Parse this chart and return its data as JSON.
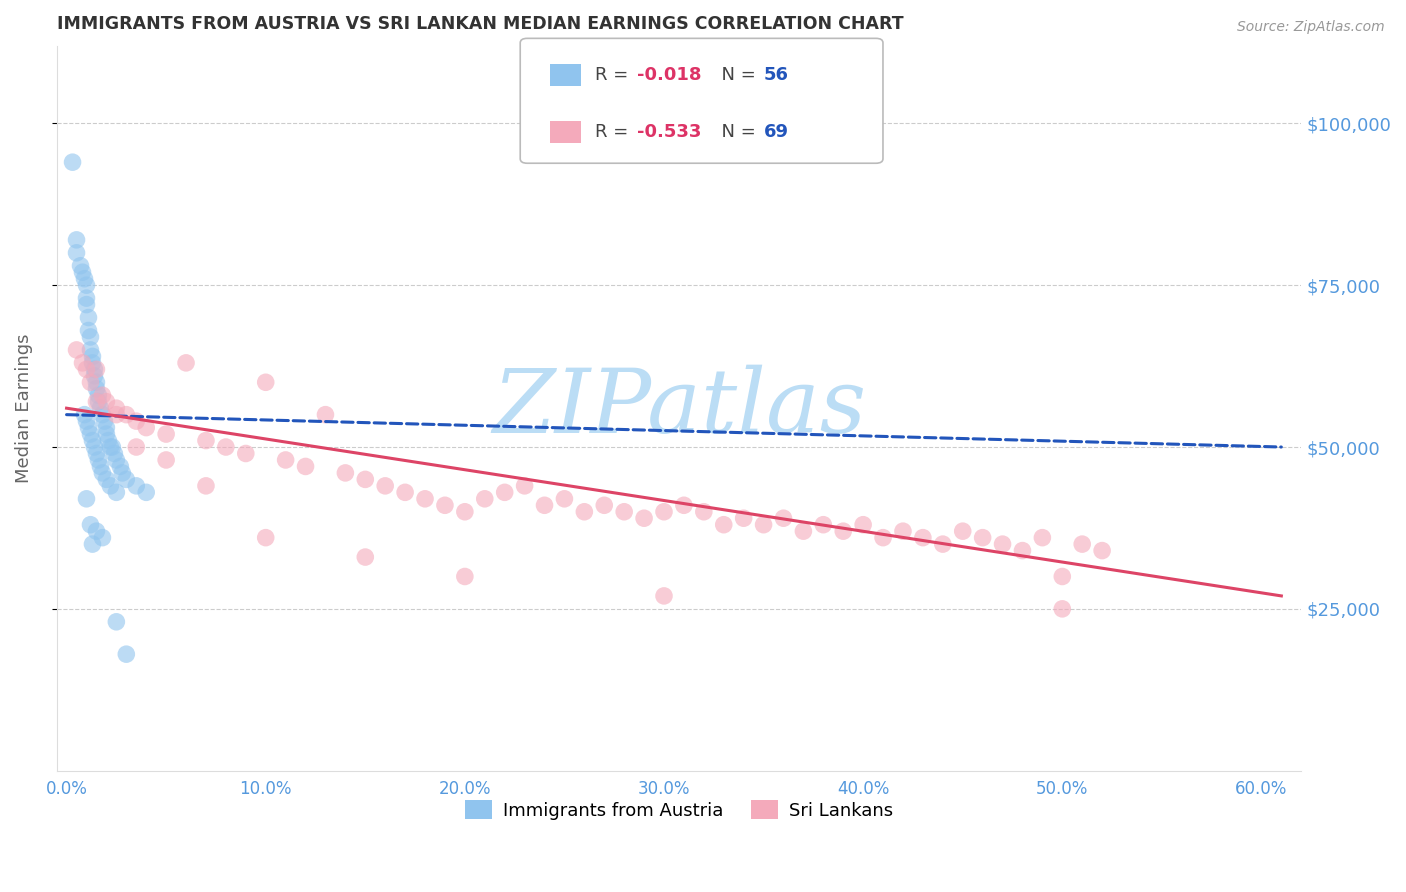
{
  "title": "IMMIGRANTS FROM AUSTRIA VS SRI LANKAN MEDIAN EARNINGS CORRELATION CHART",
  "source": "Source: ZipAtlas.com",
  "ylabel": "Median Earnings",
  "yticks": [
    25000,
    50000,
    75000,
    100000
  ],
  "ytick_labels": [
    "$25,000",
    "$50,000",
    "$75,000",
    "$100,000"
  ],
  "ylim": [
    0,
    112000
  ],
  "xlim": [
    -0.5,
    62
  ],
  "xticks": [
    0,
    10,
    20,
    30,
    40,
    50,
    60
  ],
  "xtick_labels": [
    "0.0%",
    "10.0%",
    "20.0%",
    "30.0%",
    "40.0%",
    "50.0%",
    "60.0%"
  ],
  "blue_R": "-0.018",
  "blue_N": "56",
  "pink_R": "-0.533",
  "pink_N": "69",
  "blue_scatter_color": "#90C4EE",
  "pink_scatter_color": "#F4AABB",
  "blue_line_color": "#2255BB",
  "pink_line_color": "#DD4466",
  "axis_color": "#5599DD",
  "title_color": "#333333",
  "grid_color": "#CCCCCC",
  "watermark": "ZIPatlas",
  "watermark_color": "#BBDDF5",
  "legend_R_color": "#DD3366",
  "legend_N_color": "#2255BB",
  "blue_x": [
    0.3,
    0.5,
    0.5,
    0.7,
    0.8,
    0.9,
    1.0,
    1.0,
    1.0,
    1.1,
    1.1,
    1.2,
    1.2,
    1.3,
    1.3,
    1.4,
    1.4,
    1.5,
    1.5,
    1.6,
    1.6,
    1.7,
    1.8,
    1.9,
    2.0,
    2.0,
    2.1,
    2.2,
    2.3,
    2.4,
    2.5,
    2.7,
    2.8,
    3.0,
    3.5,
    4.0,
    0.9,
    1.0,
    1.1,
    1.2,
    1.3,
    1.4,
    1.5,
    1.6,
    1.7,
    1.8,
    2.0,
    2.2,
    2.5,
    1.0,
    1.2,
    1.5,
    1.8,
    2.5,
    3.0,
    1.3
  ],
  "blue_y": [
    94000,
    82000,
    80000,
    78000,
    77000,
    76000,
    75000,
    73000,
    72000,
    70000,
    68000,
    67000,
    65000,
    64000,
    63000,
    62000,
    61000,
    60000,
    59000,
    58000,
    57000,
    56000,
    55000,
    54000,
    53000,
    52000,
    51000,
    50000,
    50000,
    49000,
    48000,
    47000,
    46000,
    45000,
    44000,
    43000,
    55000,
    54000,
    53000,
    52000,
    51000,
    50000,
    49000,
    48000,
    47000,
    46000,
    45000,
    44000,
    43000,
    42000,
    38000,
    37000,
    36000,
    23000,
    18000,
    35000
  ],
  "pink_x": [
    0.5,
    0.8,
    1.0,
    1.2,
    1.5,
    1.8,
    2.0,
    2.5,
    3.0,
    3.5,
    4.0,
    5.0,
    6.0,
    7.0,
    8.0,
    9.0,
    10.0,
    11.0,
    12.0,
    13.0,
    14.0,
    15.0,
    16.0,
    17.0,
    18.0,
    19.0,
    20.0,
    21.0,
    22.0,
    23.0,
    24.0,
    25.0,
    26.0,
    27.0,
    28.0,
    29.0,
    30.0,
    31.0,
    32.0,
    33.0,
    34.0,
    35.0,
    36.0,
    37.0,
    38.0,
    39.0,
    40.0,
    41.0,
    42.0,
    43.0,
    44.0,
    45.0,
    46.0,
    47.0,
    48.0,
    49.0,
    50.0,
    51.0,
    52.0,
    1.5,
    2.5,
    3.5,
    5.0,
    7.0,
    10.0,
    15.0,
    20.0,
    30.0,
    50.0
  ],
  "pink_y": [
    65000,
    63000,
    62000,
    60000,
    62000,
    58000,
    57000,
    56000,
    55000,
    54000,
    53000,
    52000,
    63000,
    51000,
    50000,
    49000,
    60000,
    48000,
    47000,
    55000,
    46000,
    45000,
    44000,
    43000,
    42000,
    41000,
    40000,
    42000,
    43000,
    44000,
    41000,
    42000,
    40000,
    41000,
    40000,
    39000,
    40000,
    41000,
    40000,
    38000,
    39000,
    38000,
    39000,
    37000,
    38000,
    37000,
    38000,
    36000,
    37000,
    36000,
    35000,
    37000,
    36000,
    35000,
    34000,
    36000,
    30000,
    35000,
    34000,
    57000,
    55000,
    50000,
    48000,
    44000,
    36000,
    33000,
    30000,
    27000,
    25000
  ],
  "blue_line_x0": 0,
  "blue_line_x1": 61,
  "blue_line_y0": 55000,
  "blue_line_y1": 50000,
  "pink_line_x0": 0,
  "pink_line_x1": 61,
  "pink_line_y0": 56000,
  "pink_line_y1": 27000
}
